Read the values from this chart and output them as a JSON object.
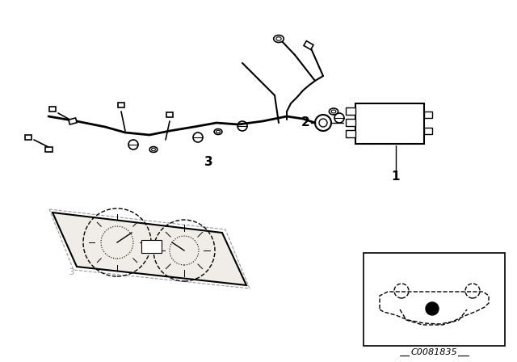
{
  "bg_color": "#ffffff",
  "fig_width": 6.4,
  "fig_height": 4.48,
  "dpi": 100,
  "label_1": "1",
  "label_2": "2",
  "label_3": "3",
  "code_text": "C0081835",
  "line_color": "#000000",
  "light_gray": "#aaaaaa",
  "dark_gray": "#555555"
}
